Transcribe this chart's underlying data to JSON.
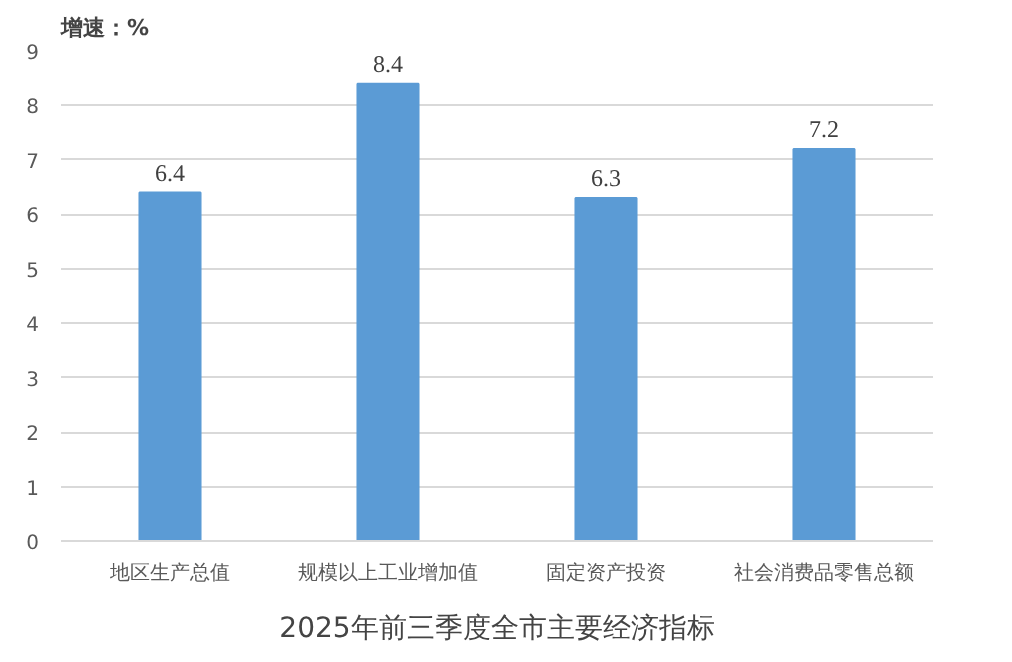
{
  "chart_data": {
    "type": "bar",
    "title": "2025年前三季度全市主要经济指标",
    "ylabel": "增速：%",
    "categories": [
      "地区生产总值",
      "规模以上工业增加值",
      "固定资产投资",
      "社会消费品零售总额"
    ],
    "values": [
      6.4,
      8.4,
      6.3,
      7.2
    ],
    "color": "#5b9bd5",
    "ylim": [
      0,
      9
    ],
    "yticks": [
      0,
      1,
      2,
      3,
      4,
      5,
      6,
      7,
      8,
      9
    ],
    "grid": "y",
    "data_labels": true
  }
}
